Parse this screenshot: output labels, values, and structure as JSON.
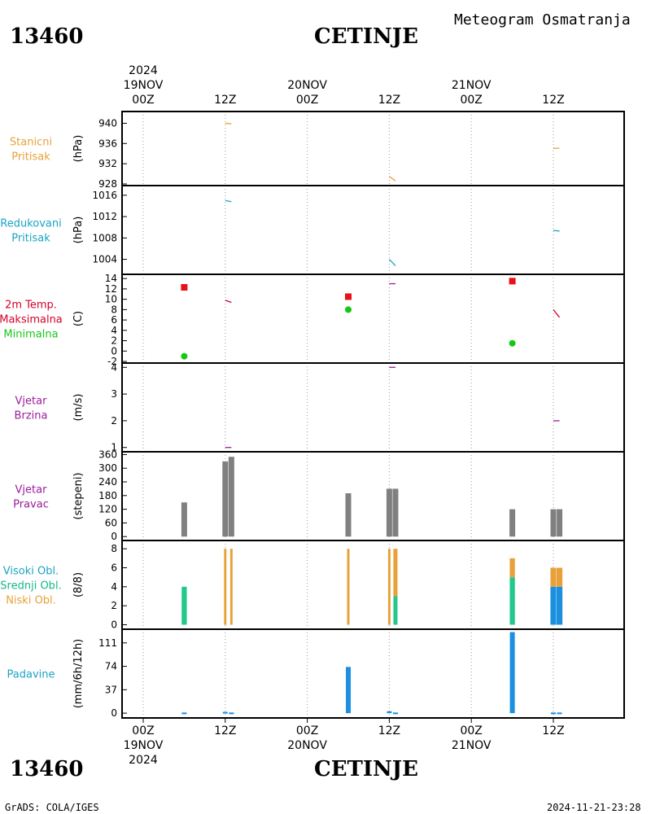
{
  "header": {
    "station_id": "13460",
    "station_name": "CETINJE",
    "title": "Meteogram Osmatranja"
  },
  "footer": {
    "station_id": "13460",
    "station_name": "CETINJE",
    "credit": "GrADS: COLA/IGES",
    "timestamp": "2024-11-21-23:28"
  },
  "time_axis": {
    "year": "2024",
    "ticks": [
      {
        "hour": 0,
        "label": "00Z",
        "date": "19NOV"
      },
      {
        "hour": 12,
        "label": "12Z",
        "date": ""
      },
      {
        "hour": 24,
        "label": "00Z",
        "date": "20NOV"
      },
      {
        "hour": 36,
        "label": "12Z",
        "date": ""
      },
      {
        "hour": 48,
        "label": "00Z",
        "date": "21NOV"
      },
      {
        "hour": 60,
        "label": "12Z",
        "date": ""
      }
    ]
  },
  "chart_data": [
    {
      "type": "line",
      "labels": [
        "Stanicni",
        "Pritisak"
      ],
      "label_colors": [
        "#e8a13a",
        "#e8a13a"
      ],
      "ylabel": "(hPa)",
      "ylim": [
        928,
        942
      ],
      "yticks": [
        940,
        936,
        932,
        928
      ],
      "series": [
        {
          "color": "#e8a13a",
          "segments": [
            [
              [
                12.0,
                940.0
              ],
              [
                12.9,
                939.9
              ]
            ],
            [
              [
                36.0,
                929.5
              ],
              [
                36.9,
                928.6
              ]
            ],
            [
              [
                60.0,
                935.0
              ],
              [
                60.9,
                935.1
              ]
            ]
          ]
        }
      ]
    },
    {
      "type": "line",
      "labels": [
        "Redukovani",
        "Pritisak"
      ],
      "label_colors": [
        "#19a4c4",
        "#19a4c4"
      ],
      "ylabel": "(hPa)",
      "ylim": [
        1001.5,
        1017.5
      ],
      "yticks": [
        1016,
        1012,
        1008,
        1004
      ],
      "series": [
        {
          "color": "#19a4c4",
          "segments": [
            [
              [
                12.0,
                1015.0
              ],
              [
                12.9,
                1014.8
              ]
            ],
            [
              [
                36.0,
                1004.0
              ],
              [
                36.9,
                1002.8
              ]
            ],
            [
              [
                60.0,
                1009.4
              ],
              [
                60.9,
                1009.3
              ]
            ]
          ]
        }
      ]
    },
    {
      "type": "scatter",
      "labels": [
        "2m Temp.",
        "Maksimalna",
        "Minimalna"
      ],
      "label_colors": [
        "#d4002a",
        "#d4002a",
        "#15c815"
      ],
      "ylabel": "(C)",
      "ylim": [
        -2,
        14.5
      ],
      "yticks": [
        14,
        12,
        10,
        8,
        6,
        4,
        2,
        0,
        -2
      ],
      "maximum": {
        "color": "#e8101a",
        "points": [
          [
            6,
            12.3
          ],
          [
            30,
            10.5
          ],
          [
            54,
            13.5
          ]
        ]
      },
      "minimum": {
        "color": "#15c815",
        "points": [
          [
            6,
            -1.0
          ],
          [
            30,
            8.0
          ],
          [
            54,
            1.5
          ]
        ]
      },
      "series": [
        {
          "color": "#d4002a",
          "segments": [
            [
              [
                12.0,
                9.8
              ],
              [
                12.9,
                9.4
              ]
            ]
          ]
        },
        {
          "color": "#9b1c9b",
          "segments": [
            [
              [
                36.0,
                13.0
              ],
              [
                36.9,
                13.0
              ]
            ]
          ]
        },
        {
          "color": "#d4002a",
          "segments": [
            [
              [
                60.0,
                8.0
              ],
              [
                60.9,
                6.5
              ]
            ]
          ]
        }
      ]
    },
    {
      "type": "line",
      "labels": [
        "Vjetar",
        "Brzina"
      ],
      "label_colors": [
        "#9b1c9b",
        "#9b1c9b"
      ],
      "ylabel": "(m/s)",
      "ylim": [
        0.9,
        4.1
      ],
      "yticks": [
        4,
        3,
        2,
        1
      ],
      "series": [
        {
          "color": "#9b1c9b",
          "segments": [
            [
              [
                12.0,
                1.0
              ],
              [
                12.9,
                1.0
              ]
            ],
            [
              [
                36.0,
                4.0
              ],
              [
                36.9,
                4.0
              ]
            ],
            [
              [
                60.0,
                2.0
              ],
              [
                60.9,
                2.0
              ]
            ]
          ]
        }
      ]
    },
    {
      "type": "bar",
      "labels": [
        "Vjetar",
        "Pravac"
      ],
      "label_colors": [
        "#9b1c9b",
        "#9b1c9b"
      ],
      "ylabel": "(stepeni)",
      "ylim": [
        -10,
        365
      ],
      "yticks": [
        360,
        300,
        240,
        180,
        120,
        60,
        0
      ],
      "bars": [
        {
          "x": 6,
          "value": 150,
          "color": "#808080"
        },
        {
          "x": 12,
          "value": 330,
          "color": "#808080"
        },
        {
          "x": 12.9,
          "value": 350,
          "color": "#808080"
        },
        {
          "x": 30,
          "value": 190,
          "color": "#808080"
        },
        {
          "x": 36,
          "value": 210,
          "color": "#808080"
        },
        {
          "x": 36.9,
          "value": 210,
          "color": "#808080"
        },
        {
          "x": 54,
          "value": 120,
          "color": "#808080"
        },
        {
          "x": 60,
          "value": 120,
          "color": "#808080"
        },
        {
          "x": 60.9,
          "value": 120,
          "color": "#808080"
        }
      ]
    },
    {
      "type": "bar",
      "labels": [
        "Visoki Obl.",
        "Srednji Obl.",
        "Niski Obl."
      ],
      "label_colors": [
        "#19a4c4",
        "#15b888",
        "#e8a13a"
      ],
      "ylabel": "(8/8)",
      "ylim": [
        -0.3,
        8.7
      ],
      "yticks": [
        8,
        6,
        4,
        2,
        0
      ],
      "groups": [
        {
          "x": 6,
          "width": 0.75,
          "layers": [
            {
              "value": 4,
              "color": "#22c88c"
            }
          ]
        },
        {
          "x": 12,
          "width": 0.35,
          "layers": [
            {
              "value": 8,
              "color": "#e8a13a"
            }
          ]
        },
        {
          "x": 12.9,
          "width": 0.35,
          "layers": [
            {
              "value": 8,
              "color": "#e8a13a"
            }
          ]
        },
        {
          "x": 30,
          "width": 0.35,
          "layers": [
            {
              "value": 8,
              "color": "#e8a13a"
            }
          ]
        },
        {
          "x": 36,
          "width": 0.35,
          "layers": [
            {
              "value": 8,
              "color": "#e8a13a"
            }
          ]
        },
        {
          "x": 36.9,
          "width": 0.6,
          "layers": [
            {
              "value": 3,
              "color": "#22c88c"
            },
            {
              "value": 5,
              "color": "#e8a13a"
            }
          ]
        },
        {
          "x": 54,
          "width": 0.75,
          "layers": [
            {
              "value": 5,
              "color": "#22c88c"
            },
            {
              "value": 2,
              "color": "#e8a13a"
            }
          ]
        },
        {
          "x": 60,
          "width": 0.85,
          "layers": [
            {
              "value": 4,
              "color": "#1b8fe0"
            },
            {
              "value": 2,
              "color": "#e8a13a"
            }
          ]
        },
        {
          "x": 60.9,
          "width": 0.85,
          "layers": [
            {
              "value": 4,
              "color": "#1b8fe0"
            },
            {
              "value": 2,
              "color": "#e8a13a"
            }
          ]
        }
      ]
    },
    {
      "type": "bar",
      "labels": [
        "Padavine"
      ],
      "label_colors": [
        "#19a4c4"
      ],
      "ylabel": "(mm/6h/12h)",
      "ylim": [
        -5,
        130
      ],
      "yticks": [
        111,
        74,
        37,
        0
      ],
      "bars": [
        {
          "x": 6,
          "value": 1,
          "color": "#1b8fe0"
        },
        {
          "x": 12,
          "value": 2,
          "color": "#1b8fe0"
        },
        {
          "x": 12.9,
          "value": 1,
          "color": "#1b8fe0"
        },
        {
          "x": 30,
          "value": 73,
          "color": "#1b8fe0"
        },
        {
          "x": 36,
          "value": 3,
          "color": "#1b8fe0"
        },
        {
          "x": 36.9,
          "value": 1,
          "color": "#1b8fe0"
        },
        {
          "x": 54,
          "value": 128,
          "color": "#1b8fe0"
        },
        {
          "x": 60,
          "value": 1,
          "color": "#1b8fe0"
        },
        {
          "x": 60.9,
          "value": 1,
          "color": "#1b8fe0"
        }
      ]
    }
  ]
}
